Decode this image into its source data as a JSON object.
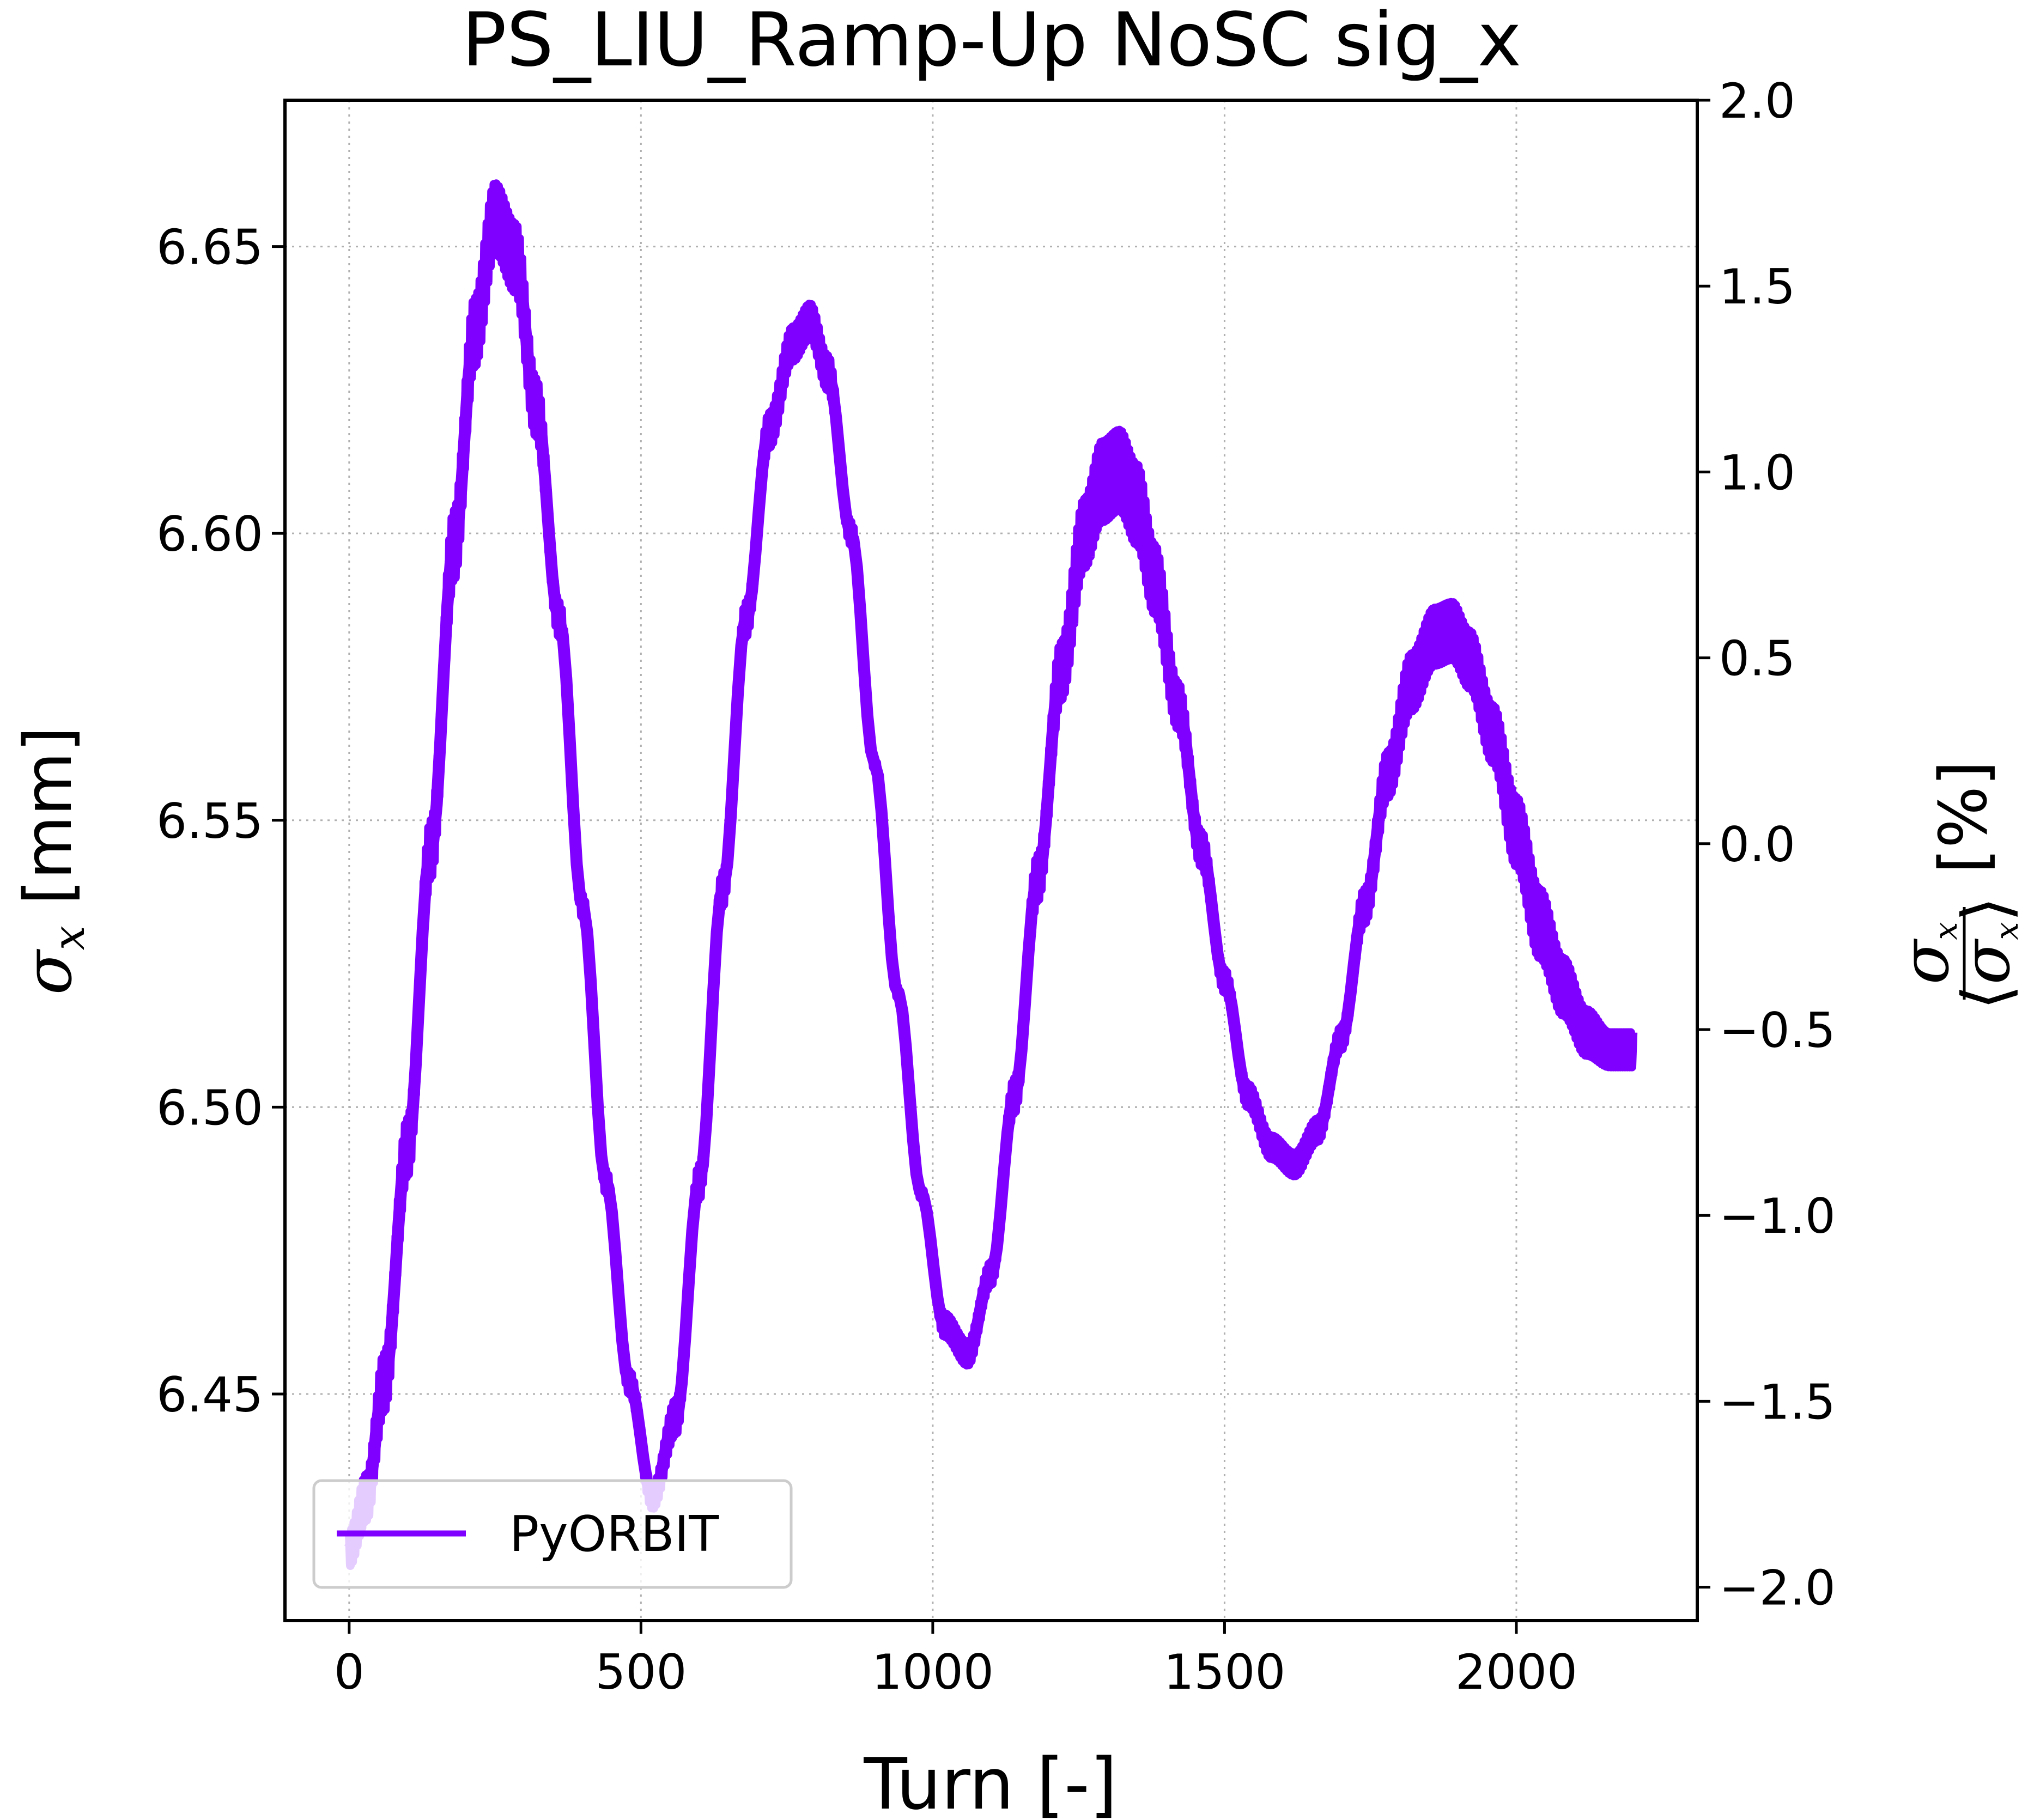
{
  "chart_data": {
    "type": "line",
    "title": "PS_LIU_Ramp-Up NoSC sig_x",
    "xlabel": "Turn [-]",
    "ylabel_left": {
      "symbol": "σ",
      "sub": "x",
      "unit": "[mm]"
    },
    "ylabel_right": {
      "num_symbol": "σ",
      "num_sub": "x",
      "den_open": "⟨",
      "den_symbol": "σ",
      "den_sub": "x",
      "den_close": "⟩",
      "unit": "[%]"
    },
    "xlim": [
      -110,
      2310
    ],
    "ylim_left": [
      6.4105,
      6.6755
    ],
    "ylim_right": [
      -2.09,
      2.0
    ],
    "x_ticks": [
      0,
      500,
      1000,
      1500,
      2000
    ],
    "x_tick_labels": [
      "0",
      "500",
      "1000",
      "1500",
      "2000"
    ],
    "y_left_ticks": [
      6.45,
      6.5,
      6.55,
      6.6,
      6.65
    ],
    "y_left_tick_labels": [
      "6.45",
      "6.50",
      "6.55",
      "6.60",
      "6.65"
    ],
    "y_right_ticks": [
      -2.0,
      -1.5,
      -1.0,
      -0.5,
      0.0,
      0.5,
      1.0,
      1.5,
      2.0
    ],
    "y_right_tick_labels": [
      "−2.0",
      "−1.5",
      "−1.0",
      "−0.5",
      "0.0",
      "0.5",
      "1.0",
      "1.5",
      "2.0"
    ],
    "grid": true,
    "legend_placement": "lower-left",
    "series": [
      {
        "name": "PyORBIT",
        "color": "#7f00ff",
        "x": [
          0,
          30,
          60,
          100,
          140,
          180,
          215,
          250,
          285,
          320,
          360,
          400,
          440,
          480,
          520,
          560,
          600,
          640,
          680,
          720,
          760,
          790,
          820,
          860,
          900,
          940,
          980,
          1020,
          1060,
          1100,
          1140,
          1180,
          1220,
          1260,
          1290,
          1320,
          1350,
          1380,
          1420,
          1460,
          1500,
          1540,
          1580,
          1620,
          1660,
          1700,
          1740,
          1780,
          1820,
          1860,
          1890,
          1920,
          1960,
          2000,
          2040,
          2080,
          2120,
          2160,
          2200
        ],
        "y": [
          6.423,
          6.432,
          6.452,
          6.493,
          6.545,
          6.598,
          6.635,
          6.655,
          6.648,
          6.622,
          6.585,
          6.535,
          6.487,
          6.452,
          6.432,
          6.446,
          6.487,
          6.538,
          6.585,
          6.618,
          6.633,
          6.637,
          6.628,
          6.6,
          6.56,
          6.52,
          6.485,
          6.462,
          6.457,
          6.471,
          6.502,
          6.54,
          6.576,
          6.6,
          6.609,
          6.611,
          6.605,
          6.592,
          6.57,
          6.545,
          6.522,
          6.502,
          6.493,
          6.49,
          6.496,
          6.512,
          6.535,
          6.558,
          6.574,
          6.582,
          6.583,
          6.578,
          6.565,
          6.548,
          6.532,
          6.521,
          6.513,
          6.51,
          6.51
        ],
        "band_halfwidth": [
          0.003,
          0.004,
          0.005,
          0.005,
          0.005,
          0.006,
          0.006,
          0.006,
          0.006,
          0.005,
          0.003,
          0.002,
          0.002,
          0.002,
          0.002,
          0.003,
          0.003,
          0.003,
          0.003,
          0.003,
          0.003,
          0.003,
          0.003,
          0.002,
          0.001,
          0.001,
          0.001,
          0.002,
          0.002,
          0.002,
          0.003,
          0.004,
          0.005,
          0.006,
          0.007,
          0.007,
          0.007,
          0.006,
          0.004,
          0.003,
          0.002,
          0.002,
          0.002,
          0.002,
          0.002,
          0.002,
          0.003,
          0.004,
          0.005,
          0.005,
          0.005,
          0.005,
          0.005,
          0.006,
          0.006,
          0.005,
          0.004,
          0.003,
          0.003
        ]
      }
    ]
  }
}
